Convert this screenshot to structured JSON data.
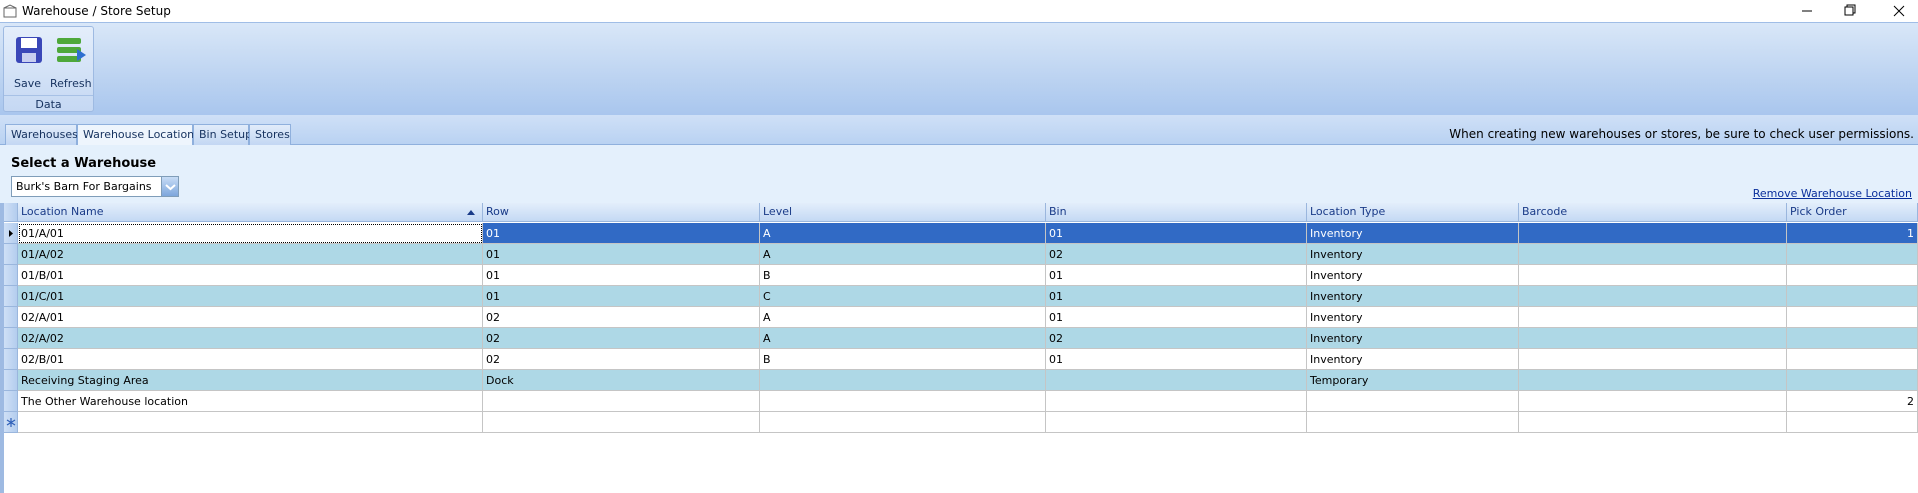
{
  "window": {
    "title": "Warehouse / Store Setup"
  },
  "ribbon": {
    "buttons": [
      "Save",
      "Refresh"
    ],
    "group": "Data"
  },
  "tabs": {
    "items": [
      "Warehouses",
      "Warehouse Locations",
      "Bin Setup",
      "Stores"
    ],
    "active": 1
  },
  "notice": "When creating new warehouses or stores, be sure to check user permissions.",
  "selector": {
    "label": "Select a Warehouse",
    "value": "Burk's Barn For Bargains"
  },
  "link": "Remove Warehouse Location",
  "table": {
    "columns": [
      "Location Name",
      "Row",
      "Level",
      "Bin",
      "Location Type",
      "Barcode",
      "Pick Order"
    ],
    "rows": [
      [
        "01/A/01",
        "01",
        "A",
        "01",
        "Inventory",
        null,
        1
      ],
      [
        "01/A/02",
        "01",
        "A",
        "02",
        "Inventory",
        null,
        null
      ],
      [
        "01/B/01",
        "01",
        "B",
        "01",
        "Inventory",
        null,
        null
      ],
      [
        "01/C/01",
        "01",
        "C",
        "01",
        "Inventory",
        null,
        null
      ],
      [
        "02/A/01",
        "02",
        "A",
        "01",
        "Inventory",
        null,
        null
      ],
      [
        "02/A/02",
        "02",
        "A",
        "02",
        "Inventory",
        null,
        null
      ],
      [
        "02/B/01",
        "02",
        "B",
        "01",
        "Inventory",
        null,
        null
      ],
      [
        "Receiving Staging Area",
        "Dock",
        null,
        null,
        "Temporary",
        null,
        null
      ],
      [
        "The Other Warehouse location",
        null,
        null,
        null,
        null,
        null,
        2
      ]
    ],
    "selected_row": 0
  }
}
